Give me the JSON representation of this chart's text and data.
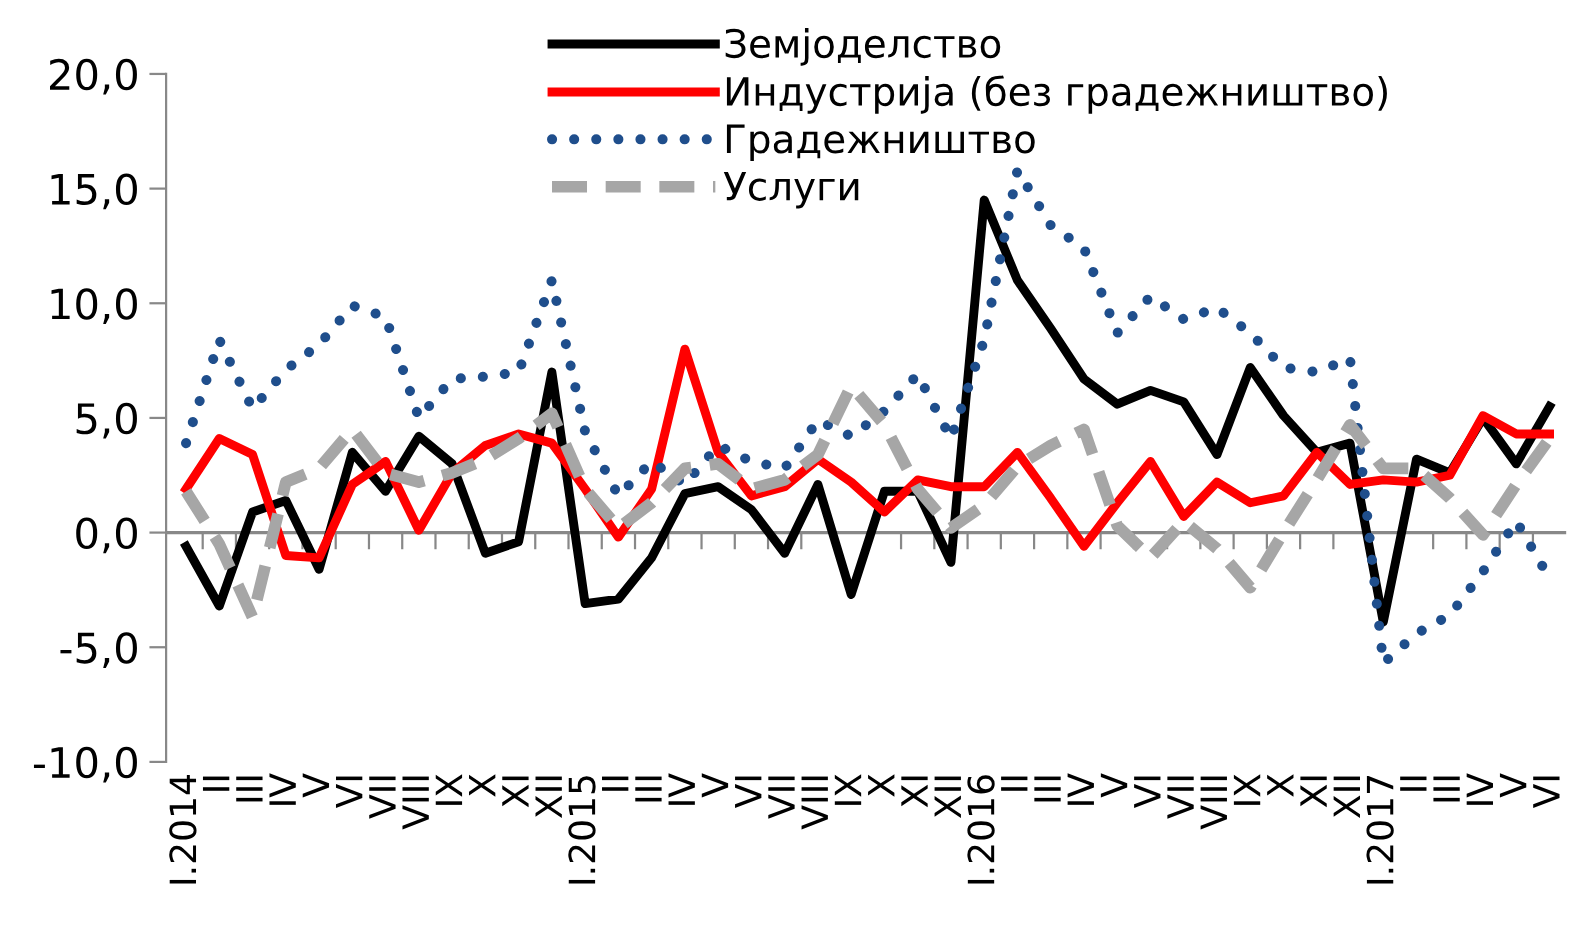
{
  "chart_data": {
    "type": "line",
    "categories": [
      "I.2014",
      "II",
      "III",
      "IV",
      "V",
      "VI",
      "VII",
      "VIII",
      "IX",
      "X",
      "XI",
      "XII",
      "I.2015",
      "II",
      "III",
      "IV",
      "V",
      "VI",
      "VII",
      "VIII",
      "IX",
      "X",
      "XI",
      "XII",
      "I.2016",
      "II",
      "III",
      "IV",
      "V",
      "VI",
      "VII",
      "VIII",
      "IX",
      "X",
      "XI",
      "XII",
      "I.2017",
      "II",
      "III",
      "IV",
      "V",
      "VI"
    ],
    "series": [
      {
        "name": "Земјоделство",
        "color": "#000000",
        "line_style": "solid",
        "values": [
          -0.6,
          -3.2,
          0.9,
          1.4,
          -1.6,
          3.5,
          1.8,
          4.2,
          3.0,
          -0.9,
          -0.4,
          7.0,
          -3.1,
          -2.9,
          -1.1,
          1.7,
          2.0,
          1.0,
          -0.9,
          2.1,
          -2.7,
          1.8,
          1.8,
          -1.3,
          14.5,
          11.0,
          8.9,
          6.7,
          5.6,
          6.2,
          5.7,
          3.4,
          7.2,
          5.1,
          3.5,
          3.9,
          -3.9,
          3.2,
          2.6,
          5.0,
          3.0,
          5.5
        ]
      },
      {
        "name": "Индустрија (без градежништво)",
        "color": "#ff0000",
        "line_style": "solid",
        "values": [
          1.9,
          4.1,
          3.4,
          -1.0,
          -1.1,
          2.1,
          3.1,
          0.1,
          2.6,
          3.8,
          4.3,
          3.9,
          1.9,
          -0.2,
          1.9,
          8.0,
          3.5,
          1.6,
          2.0,
          3.2,
          2.2,
          0.9,
          2.3,
          2.0,
          2.0,
          3.5,
          1.5,
          -0.6,
          1.3,
          3.1,
          0.7,
          2.2,
          1.3,
          1.6,
          3.5,
          2.1,
          2.3,
          2.2,
          2.5,
          5.1,
          4.3,
          4.3
        ]
      },
      {
        "name": "Градежништво",
        "color": "#1f4e8c",
        "line_style": "dotted",
        "values": [
          3.9,
          8.4,
          5.4,
          7.1,
          8.2,
          9.9,
          9.4,
          5.0,
          6.7,
          6.8,
          7.0,
          11.0,
          4.4,
          1.6,
          3.1,
          2.1,
          3.8,
          3.1,
          2.8,
          4.9,
          4.2,
          5.3,
          6.9,
          4.1,
          8.4,
          15.8,
          13.4,
          12.4,
          8.7,
          10.3,
          9.3,
          9.8,
          8.7,
          7.2,
          7.0,
          7.6,
          -5.7,
          -4.4,
          -3.6,
          -1.7,
          0.5,
          -2.0
        ]
      },
      {
        "name": "Услуги",
        "color": "#a6a6a6",
        "line_style": "dashed",
        "values": [
          1.8,
          -0.5,
          -3.7,
          2.2,
          2.8,
          4.5,
          2.6,
          2.2,
          2.6,
          3.2,
          4.1,
          5.2,
          1.9,
          0.2,
          1.3,
          2.8,
          3.0,
          1.9,
          2.3,
          3.4,
          6.4,
          4.7,
          1.9,
          0.2,
          1.2,
          2.9,
          3.8,
          4.5,
          0.3,
          -1.1,
          0.5,
          -0.7,
          -2.4,
          0.0,
          2.3,
          4.7,
          2.8,
          2.8,
          1.5,
          -0.1,
          2.1,
          4.1
        ]
      }
    ],
    "ylim": [
      -10,
      20
    ],
    "yticks": [
      {
        "value": -10,
        "label": "-10,0"
      },
      {
        "value": -5,
        "label": "-5,0"
      },
      {
        "value": 0,
        "label": "0,0"
      },
      {
        "value": 5,
        "label": "5,0"
      },
      {
        "value": 10,
        "label": "10,0"
      },
      {
        "value": 15,
        "label": "15,0"
      },
      {
        "value": 20,
        "label": "20,0"
      }
    ],
    "grid": false,
    "ref_lines": [
      {
        "axis": "y",
        "value": 0,
        "color": "#888888"
      }
    ],
    "legend": "top",
    "marker": "none"
  }
}
